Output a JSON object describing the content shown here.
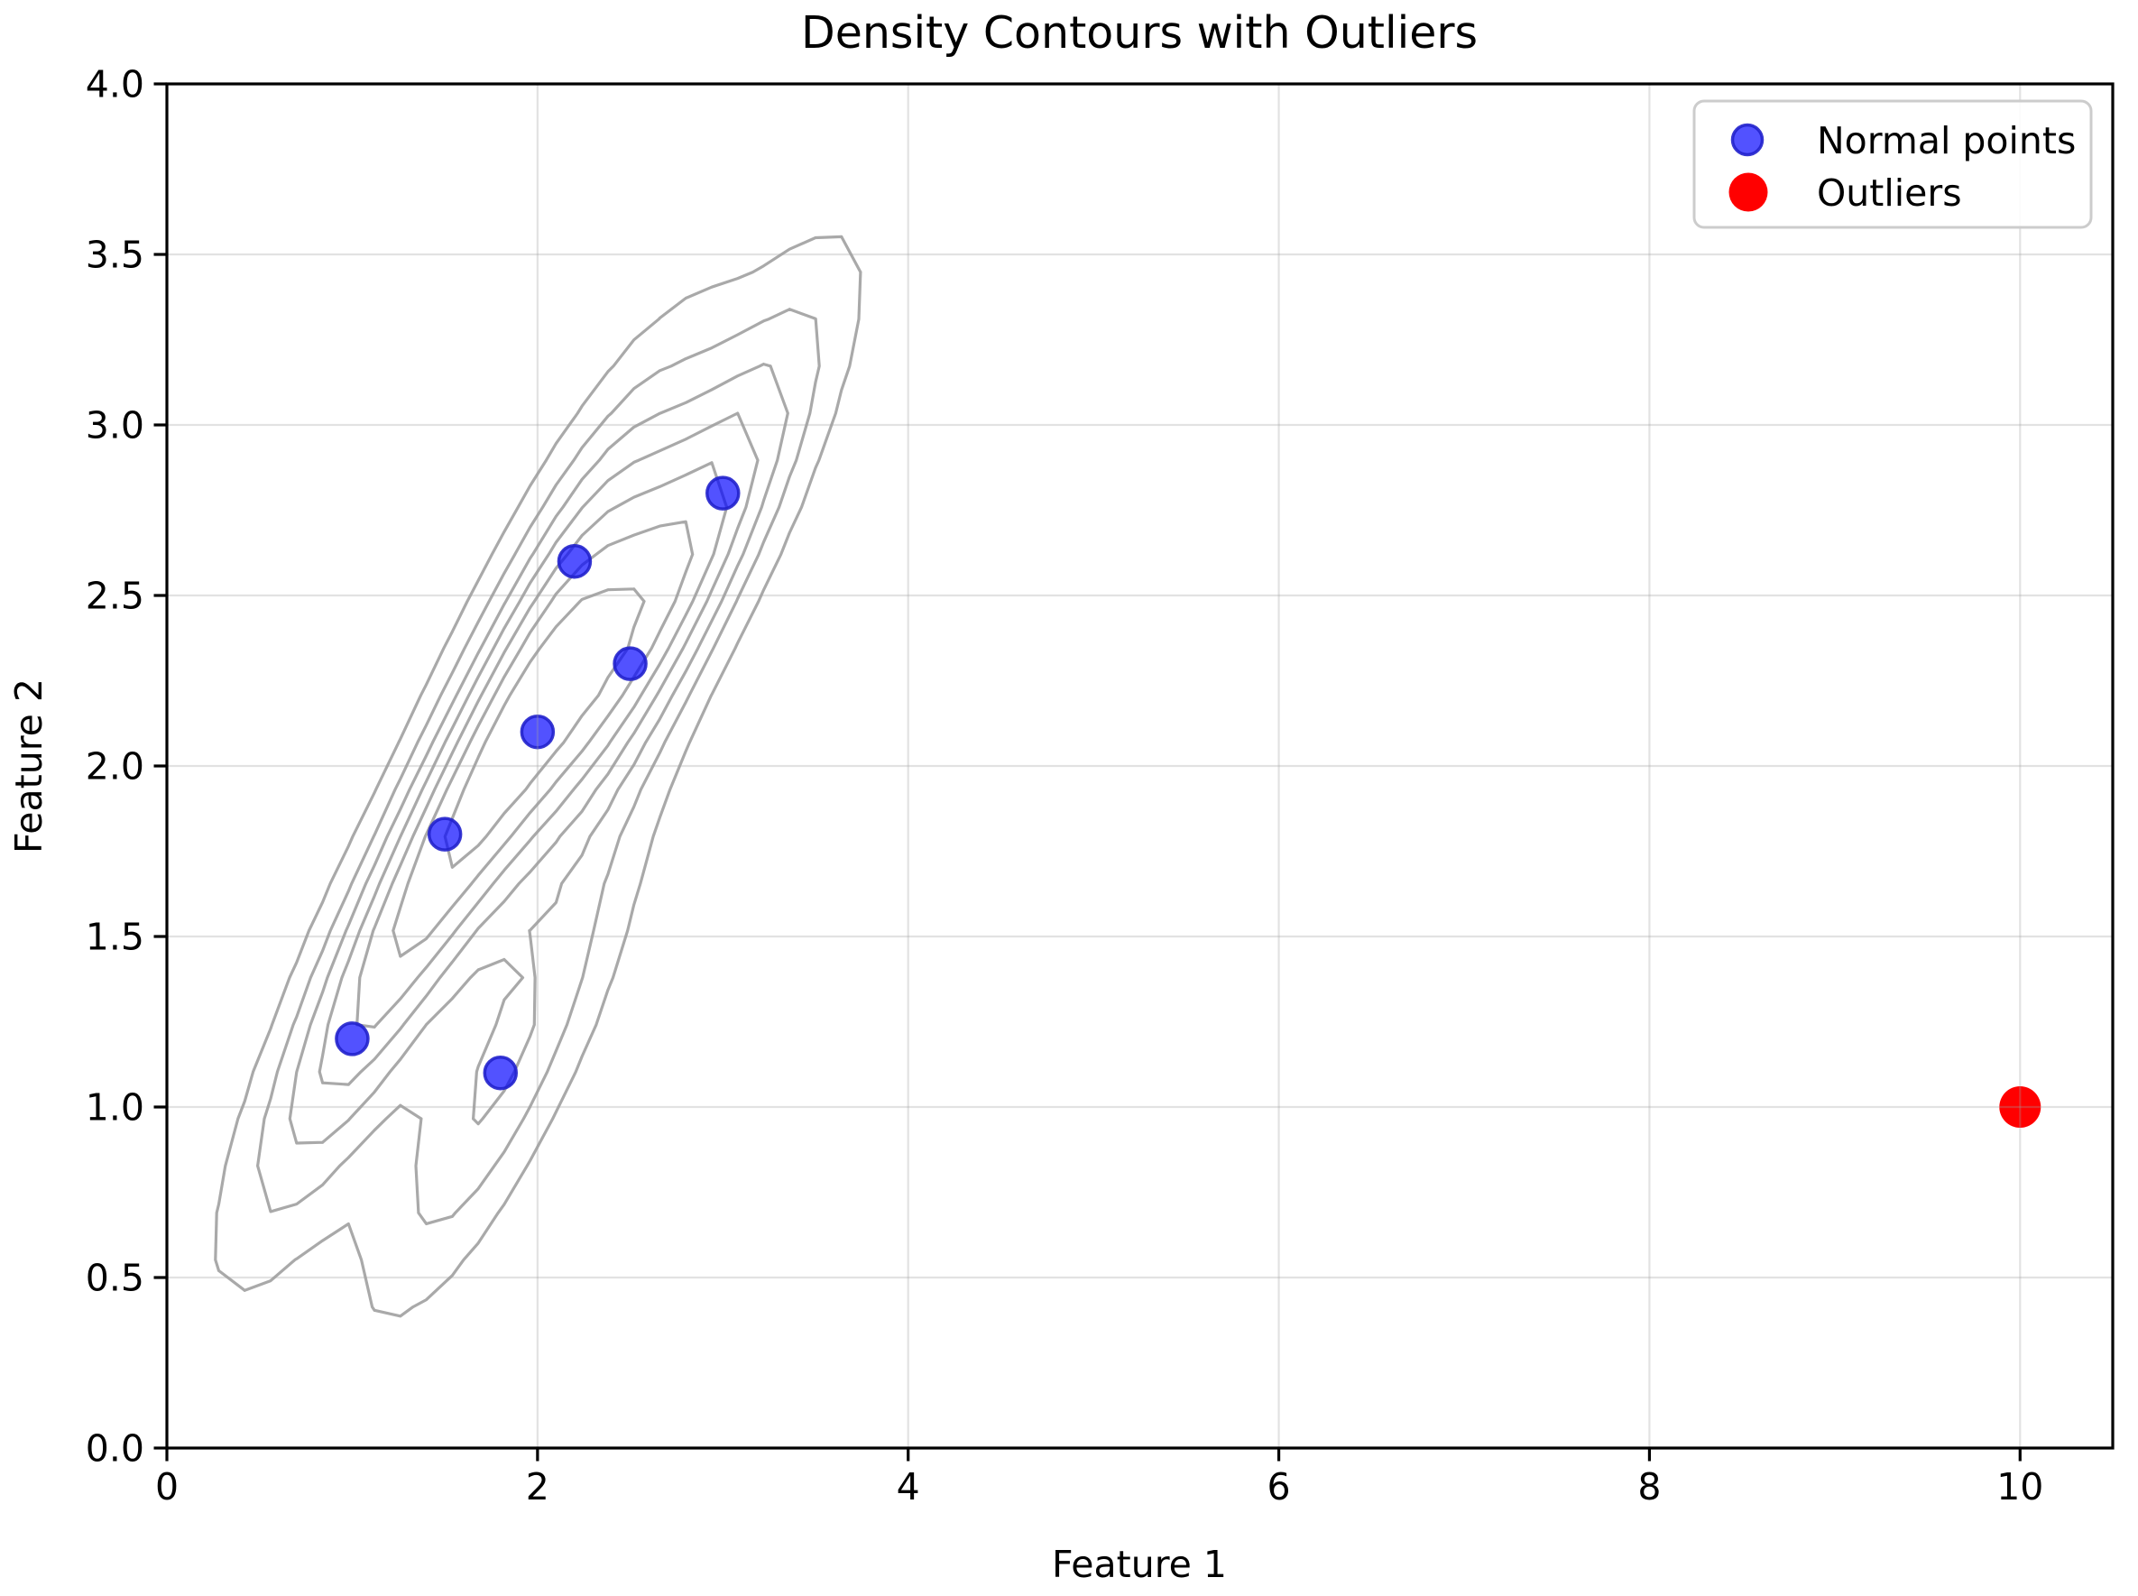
{
  "title": "Density Contours with Outliers",
  "x_axis": {
    "label": "Feature 1",
    "tick_labels": [
      "0",
      "2",
      "4",
      "6",
      "8",
      "10"
    ],
    "tick_values": [
      0,
      2,
      4,
      6,
      8,
      10
    ],
    "range": [
      0,
      10.5
    ]
  },
  "y_axis": {
    "label": "Feature 2",
    "tick_labels": [
      "0.0",
      "0.5",
      "1.0",
      "1.5",
      "2.0",
      "2.5",
      "3.0",
      "3.5",
      "4.0"
    ],
    "tick_values": [
      0,
      0.5,
      1,
      1.5,
      2,
      2.5,
      3,
      3.5,
      4
    ],
    "range": [
      0,
      4
    ]
  },
  "legend": {
    "items": [
      {
        "label": "Normal points",
        "marker": "circle"
      },
      {
        "label": "Outliers",
        "marker": "circle"
      }
    ]
  },
  "style": {
    "background": "#ffffff",
    "spine_color": "#000000",
    "grid_color": "#a0a0a0",
    "grid_opacity": 0.3,
    "contour_color": "#a9a9a9",
    "normal_fill": "#0000ff",
    "normal_fill_opacity": 0.68,
    "normal_edge": "#2121cc",
    "outlier_fill": "#ff0000",
    "legend_edge": "#cccccc",
    "legend_fill": "#ffffff"
  },
  "chart_data": {
    "type": "scatter",
    "title": "Density Contours with Outliers",
    "xlabel": "Feature 1",
    "ylabel": "Feature 2",
    "xlim": [
      0,
      10.5
    ],
    "ylim": [
      0,
      4
    ],
    "xticks": [
      0,
      2,
      4,
      6,
      8,
      10
    ],
    "yticks": [
      0,
      0.5,
      1,
      1.5,
      2,
      2.5,
      3,
      3.5,
      4
    ],
    "grid": true,
    "legend_position": "upper right",
    "series": [
      {
        "name": "Normal points",
        "color": "blue",
        "alpha": 0.7,
        "marker_radius_px": 17.5,
        "points": [
          [
            1.0,
            1.2
          ],
          [
            1.5,
            1.8
          ],
          [
            1.8,
            1.1
          ],
          [
            2.0,
            2.1
          ],
          [
            2.2,
            2.6
          ],
          [
            2.5,
            2.3
          ],
          [
            3.0,
            2.8
          ]
        ]
      },
      {
        "name": "Outliers",
        "color": "red",
        "alpha": 1.0,
        "marker_radius_px": 23,
        "points": [
          [
            10.0,
            1.0
          ]
        ]
      }
    ],
    "contours": {
      "kind": "gaussian_kde",
      "of_series": "Normal points",
      "bandwidth": "scott",
      "levels_count": 7,
      "color": "gray",
      "eval_grid_x": [
        0,
        4.2
      ],
      "eval_grid_y": [
        0,
        4.0
      ],
      "grid_points": [
        31,
        30
      ]
    }
  }
}
